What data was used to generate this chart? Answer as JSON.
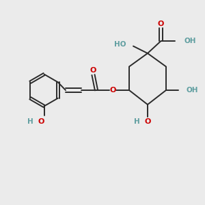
{
  "bg_color": "#ebebeb",
  "bond_color": "#2a2a2a",
  "oxygen_color": "#cc0000",
  "hydroxyl_color": "#5f9ea0",
  "figsize": [
    3.0,
    3.0
  ],
  "dpi": 100,
  "xlim": [
    0,
    10
  ],
  "ylim": [
    0,
    10
  ]
}
